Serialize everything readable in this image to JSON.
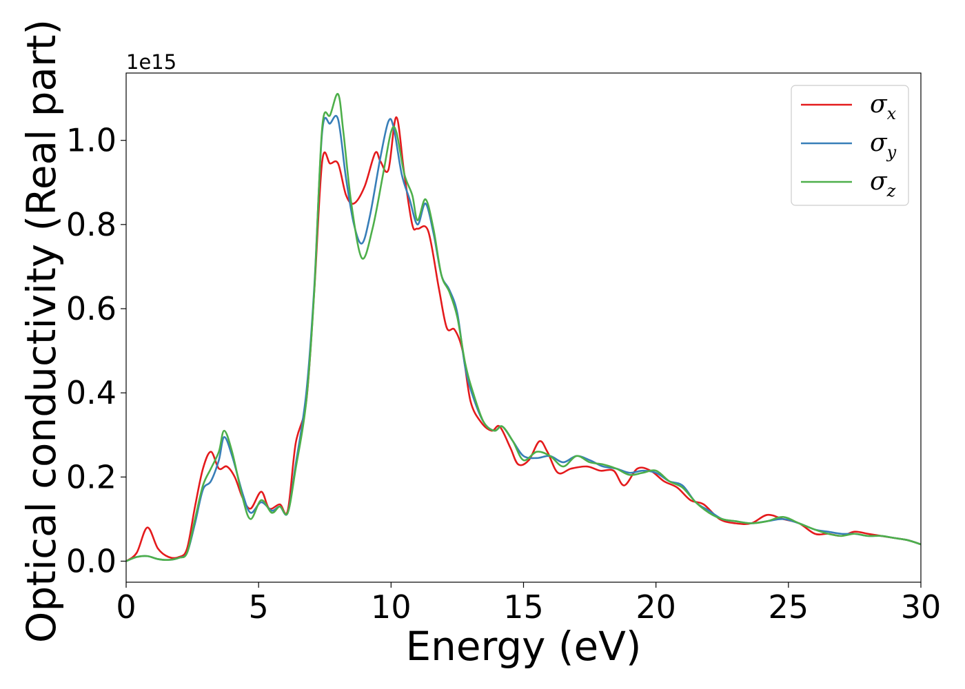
{
  "chart_data": {
    "type": "line",
    "title": "",
    "xlabel": "Energy (eV)",
    "ylabel": "Optical conductivity (Real part)",
    "y_offset_label": "1e15",
    "xlim": [
      0,
      30
    ],
    "ylim": [
      -0.05,
      1.16
    ],
    "xticks": [
      0,
      5,
      10,
      15,
      20,
      25,
      30
    ],
    "xtick_labels": [
      "0",
      "5",
      "10",
      "15",
      "20",
      "25",
      "30"
    ],
    "yticks": [
      0.0,
      0.2,
      0.4,
      0.6,
      0.8,
      1.0
    ],
    "ytick_labels": [
      "0.0",
      "0.2",
      "0.4",
      "0.6",
      "0.8",
      "1.0"
    ],
    "grid": false,
    "legend_position": "top-right",
    "series": [
      {
        "name": "σx",
        "symbol": "σ",
        "subscript": "x",
        "color": "#e41a1c",
        "x": [
          0,
          0.4,
          0.8,
          1.2,
          1.6,
          2.0,
          2.3,
          2.6,
          2.9,
          3.2,
          3.5,
          3.8,
          4.1,
          4.4,
          4.7,
          5.1,
          5.4,
          5.8,
          6.1,
          6.4,
          6.8,
          7.1,
          7.4,
          7.7,
          8.0,
          8.3,
          8.6,
          9.0,
          9.4,
          9.6,
          9.9,
          10.2,
          10.5,
          10.8,
          11.0,
          11.4,
          11.8,
          12.1,
          12.4,
          12.7,
          13.0,
          13.4,
          13.8,
          14.1,
          14.5,
          14.8,
          15.2,
          15.6,
          15.9,
          16.3,
          16.8,
          17.4,
          17.9,
          18.4,
          18.8,
          19.3,
          19.8,
          20.3,
          20.8,
          21.3,
          21.8,
          22.4,
          23.0,
          23.6,
          24.2,
          24.8,
          25.4,
          26.0,
          26.5,
          27.0,
          27.5,
          28.0,
          28.5,
          29.0,
          29.5,
          30.0
        ],
        "y": [
          0.0,
          0.02,
          0.08,
          0.03,
          0.01,
          0.01,
          0.03,
          0.13,
          0.22,
          0.26,
          0.22,
          0.225,
          0.2,
          0.15,
          0.125,
          0.165,
          0.125,
          0.135,
          0.12,
          0.28,
          0.38,
          0.64,
          0.95,
          0.945,
          0.945,
          0.87,
          0.85,
          0.89,
          0.97,
          0.95,
          0.93,
          1.055,
          0.92,
          0.8,
          0.79,
          0.785,
          0.65,
          0.555,
          0.55,
          0.5,
          0.38,
          0.33,
          0.31,
          0.32,
          0.27,
          0.23,
          0.24,
          0.285,
          0.26,
          0.21,
          0.22,
          0.225,
          0.215,
          0.215,
          0.18,
          0.22,
          0.215,
          0.19,
          0.175,
          0.145,
          0.135,
          0.1,
          0.09,
          0.09,
          0.11,
          0.1,
          0.09,
          0.065,
          0.065,
          0.06,
          0.07,
          0.065,
          0.06,
          0.055,
          0.05,
          0.04
        ]
      },
      {
        "name": "σy",
        "symbol": "σ",
        "subscript": "y",
        "color": "#377eb8",
        "x": [
          0,
          0.4,
          0.8,
          1.2,
          1.6,
          2.0,
          2.3,
          2.6,
          2.9,
          3.2,
          3.5,
          3.7,
          4.0,
          4.4,
          4.7,
          5.1,
          5.5,
          5.8,
          6.1,
          6.4,
          6.8,
          7.1,
          7.4,
          7.7,
          8.0,
          8.3,
          8.6,
          8.9,
          9.2,
          9.6,
          9.9,
          10.1,
          10.4,
          10.7,
          11.0,
          11.3,
          11.6,
          11.9,
          12.2,
          12.5,
          12.8,
          13.1,
          13.5,
          13.9,
          14.2,
          14.6,
          15.0,
          15.5,
          16.0,
          16.5,
          17.0,
          17.5,
          18.0,
          18.5,
          19.0,
          19.5,
          20.0,
          20.5,
          21.0,
          21.5,
          22.0,
          22.5,
          23.0,
          23.6,
          24.2,
          24.8,
          25.4,
          26.0,
          26.5,
          27.0,
          27.5,
          28.0,
          28.5,
          29.0,
          29.5,
          30.0
        ],
        "y": [
          0.0,
          0.01,
          0.012,
          0.005,
          0.003,
          0.008,
          0.02,
          0.09,
          0.17,
          0.19,
          0.24,
          0.295,
          0.25,
          0.16,
          0.115,
          0.14,
          0.12,
          0.13,
          0.115,
          0.23,
          0.4,
          0.65,
          1.02,
          1.04,
          1.05,
          0.91,
          0.8,
          0.755,
          0.82,
          0.96,
          1.045,
          1.03,
          0.92,
          0.86,
          0.8,
          0.85,
          0.78,
          0.68,
          0.645,
          0.59,
          0.46,
          0.39,
          0.33,
          0.31,
          0.32,
          0.285,
          0.25,
          0.245,
          0.25,
          0.235,
          0.25,
          0.24,
          0.225,
          0.22,
          0.21,
          0.215,
          0.21,
          0.19,
          0.18,
          0.14,
          0.12,
          0.1,
          0.095,
          0.09,
          0.095,
          0.1,
          0.09,
          0.075,
          0.07,
          0.065,
          0.065,
          0.06,
          0.06,
          0.055,
          0.05,
          0.04
        ]
      },
      {
        "name": "σz",
        "symbol": "σ",
        "subscript": "z",
        "color": "#4daf4a",
        "x": [
          0,
          0.4,
          0.8,
          1.2,
          1.6,
          2.0,
          2.3,
          2.6,
          2.9,
          3.2,
          3.5,
          3.7,
          4.0,
          4.4,
          4.7,
          5.1,
          5.5,
          5.8,
          6.1,
          6.4,
          6.8,
          7.1,
          7.4,
          7.7,
          8.0,
          8.2,
          8.5,
          8.9,
          9.3,
          9.7,
          10.0,
          10.2,
          10.5,
          10.8,
          11.0,
          11.3,
          11.6,
          11.9,
          12.2,
          12.5,
          12.8,
          13.1,
          13.5,
          13.9,
          14.2,
          14.6,
          15.0,
          15.5,
          16.0,
          16.5,
          17.0,
          17.5,
          18.0,
          18.5,
          19.0,
          19.5,
          20.0,
          20.5,
          21.0,
          21.5,
          22.0,
          22.5,
          23.0,
          23.6,
          24.2,
          24.8,
          25.4,
          26.0,
          26.5,
          27.0,
          27.5,
          28.0,
          28.5,
          29.0,
          29.5,
          30.0
        ],
        "y": [
          0.0,
          0.01,
          0.012,
          0.005,
          0.003,
          0.008,
          0.02,
          0.1,
          0.18,
          0.22,
          0.26,
          0.31,
          0.26,
          0.15,
          0.1,
          0.145,
          0.115,
          0.13,
          0.115,
          0.22,
          0.38,
          0.64,
          1.03,
          1.06,
          1.11,
          1.02,
          0.85,
          0.72,
          0.79,
          0.92,
          1.02,
          1.02,
          0.92,
          0.87,
          0.81,
          0.86,
          0.79,
          0.68,
          0.64,
          0.58,
          0.47,
          0.4,
          0.33,
          0.31,
          0.32,
          0.285,
          0.24,
          0.26,
          0.25,
          0.225,
          0.25,
          0.235,
          0.23,
          0.22,
          0.205,
          0.21,
          0.215,
          0.19,
          0.175,
          0.14,
          0.115,
          0.1,
          0.095,
          0.09,
          0.095,
          0.105,
          0.09,
          0.075,
          0.065,
          0.06,
          0.065,
          0.06,
          0.06,
          0.055,
          0.05,
          0.04
        ]
      }
    ]
  }
}
